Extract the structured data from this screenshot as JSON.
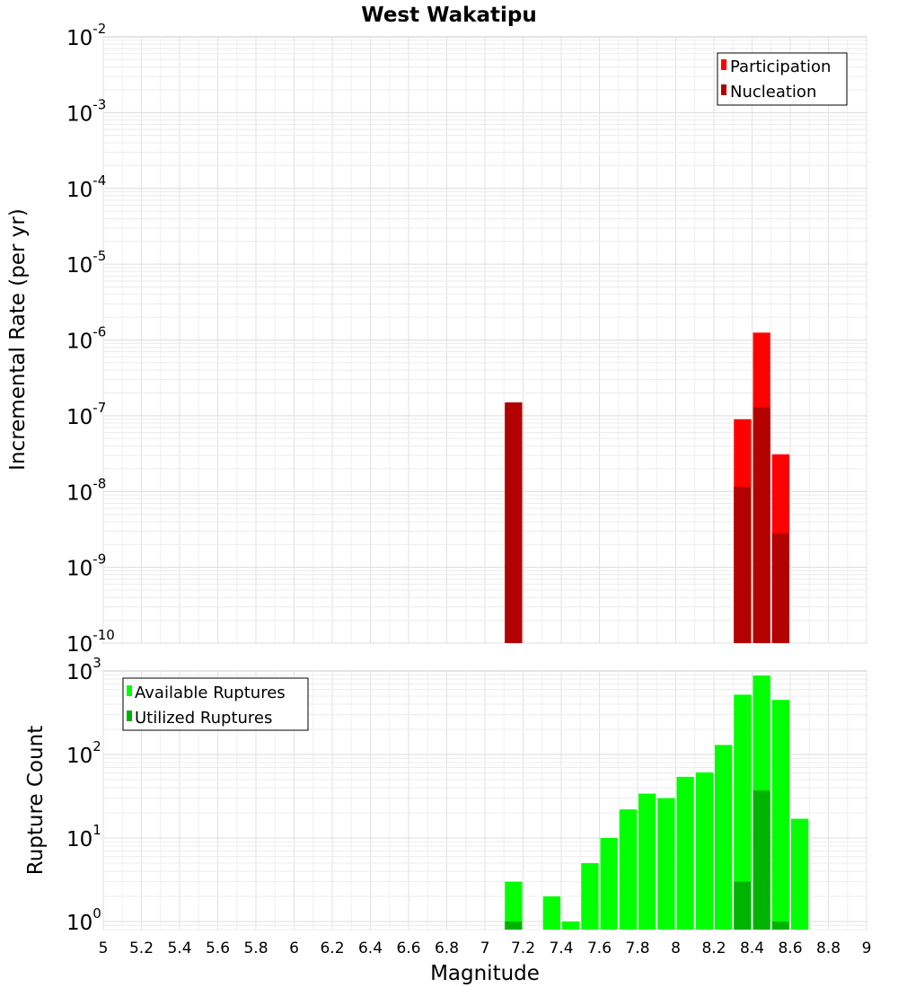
{
  "chart_data": [
    {
      "type": "bar",
      "title": "West Wakatipu",
      "xlabel": "",
      "ylabel": "Incremental Rate (per yr)",
      "scale_y": "log",
      "xlim": [
        5,
        9
      ],
      "ylim": [
        1e-10,
        0.01
      ],
      "bin_width": 0.1,
      "grid": true,
      "legend": "top-right",
      "y_ticks": [
        {
          "base": "10",
          "exp": "-10",
          "value": 1e-10
        },
        {
          "base": "10",
          "exp": "-9",
          "value": 1e-09
        },
        {
          "base": "10",
          "exp": "-8",
          "value": 1e-08
        },
        {
          "base": "10",
          "exp": "-7",
          "value": 1e-07
        },
        {
          "base": "10",
          "exp": "-6",
          "value": 1e-06
        },
        {
          "base": "10",
          "exp": "-5",
          "value": 1e-05
        },
        {
          "base": "10",
          "exp": "-4",
          "value": 0.0001
        },
        {
          "base": "10",
          "exp": "-3",
          "value": 0.001
        },
        {
          "base": "10",
          "exp": "-2",
          "value": 0.01
        }
      ],
      "series": [
        {
          "name": "Participation",
          "color": "#ff0000",
          "x": [
            7.15,
            8.35,
            8.45,
            8.55
          ],
          "values": [
            1.5e-07,
            9e-08,
            1.25e-06,
            3.1e-08
          ]
        },
        {
          "name": "Nucleation",
          "color": "#b30000",
          "x": [
            7.15,
            8.35,
            8.45,
            8.55
          ],
          "values": [
            1.5e-07,
            1.15e-08,
            1.3e-07,
            2.8e-09
          ]
        }
      ]
    },
    {
      "type": "bar",
      "title": "",
      "xlabel": "Magnitude",
      "ylabel": "Rupture Count",
      "scale_y": "log",
      "xlim": [
        5,
        9
      ],
      "ylim": [
        0.8,
        1000
      ],
      "bin_width": 0.1,
      "grid": true,
      "legend": "top-left",
      "x_ticks": [
        "5",
        "5.2",
        "5.4",
        "5.6",
        "5.8",
        "6",
        "6.2",
        "6.4",
        "6.6",
        "6.8",
        "7",
        "7.2",
        "7.4",
        "7.6",
        "7.8",
        "8",
        "8.2",
        "8.4",
        "8.6",
        "8.8",
        "9"
      ],
      "y_ticks": [
        {
          "base": "10",
          "exp": "0",
          "value": 1
        },
        {
          "base": "10",
          "exp": "1",
          "value": 10
        },
        {
          "base": "10",
          "exp": "2",
          "value": 100
        },
        {
          "base": "10",
          "exp": "3",
          "value": 1000
        }
      ],
      "series": [
        {
          "name": "Available Ruptures",
          "color": "#00ff00",
          "x": [
            7.15,
            7.35,
            7.45,
            7.55,
            7.65,
            7.75,
            7.85,
            7.95,
            8.05,
            8.15,
            8.25,
            8.35,
            8.45,
            8.55,
            8.65
          ],
          "values": [
            3,
            2,
            1,
            5,
            10,
            22,
            34,
            30,
            54,
            61,
            130,
            520,
            880,
            450,
            17
          ]
        },
        {
          "name": "Utilized Ruptures",
          "color": "#00b300",
          "x": [
            7.15,
            8.35,
            8.45,
            8.55
          ],
          "values": [
            1,
            3,
            37,
            1
          ]
        }
      ]
    }
  ]
}
